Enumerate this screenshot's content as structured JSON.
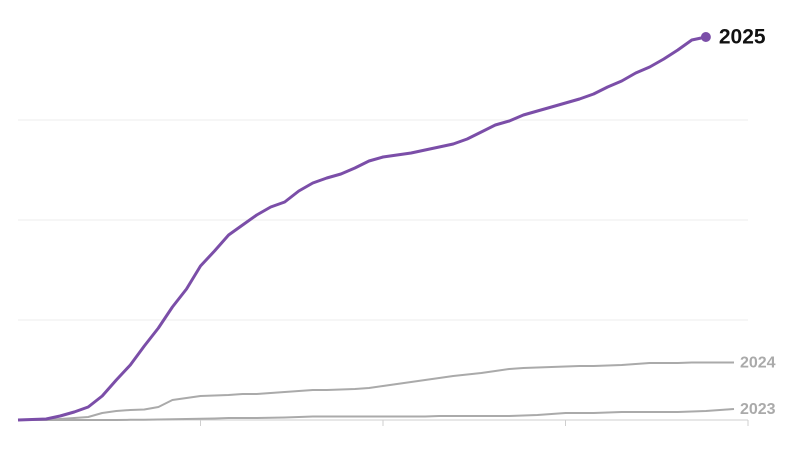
{
  "chart_data": {
    "type": "line",
    "x": [
      0,
      1,
      2,
      3,
      4,
      5,
      6,
      7,
      8,
      9,
      10,
      11,
      12,
      13,
      14,
      15,
      16,
      17,
      18,
      19,
      20,
      21,
      22,
      23,
      24,
      25,
      26,
      27,
      28,
      29,
      30,
      31,
      32,
      33,
      34,
      35,
      36,
      37,
      38,
      39,
      40,
      41,
      42,
      43,
      44,
      45,
      46,
      47,
      48,
      49,
      50,
      51
    ],
    "xlim": [
      0,
      52
    ],
    "xticks": [
      13,
      26,
      39,
      52
    ],
    "ylim": [
      0,
      400
    ],
    "yticks": [
      0,
      100,
      200,
      300
    ],
    "grid": true,
    "series": [
      {
        "name": "2025",
        "color": "#7b4ea8",
        "marker": true,
        "values": [
          0,
          0.5,
          1,
          4,
          8,
          13,
          24,
          40,
          55,
          74,
          92,
          113,
          131,
          154,
          169,
          185,
          195,
          205,
          213,
          218,
          229,
          237,
          242,
          246,
          252,
          259,
          263,
          265,
          267,
          270,
          273,
          276,
          281,
          288,
          295,
          299,
          305,
          309,
          313,
          317,
          321,
          326,
          333,
          339,
          347,
          353,
          361,
          370,
          380,
          383,
          null,
          null
        ]
      },
      {
        "name": "2024",
        "color": "#aaaaaa",
        "marker": false,
        "values": [
          0,
          0,
          0,
          1,
          2,
          3,
          7,
          9,
          10,
          10.5,
          13,
          20,
          22,
          24,
          24.5,
          25,
          26,
          26,
          27,
          28,
          29,
          30,
          30,
          30.5,
          31,
          32,
          34,
          36,
          38,
          40,
          42,
          44,
          45.5,
          47,
          49,
          51,
          52,
          52.5,
          53,
          53.5,
          54,
          54,
          54.5,
          55,
          56,
          57,
          57,
          57,
          57.5,
          57.5,
          57.5,
          57.5
        ]
      },
      {
        "name": "2023",
        "color": "#aaaaaa",
        "marker": false,
        "values": [
          0,
          0,
          0,
          0,
          0,
          0,
          0,
          0,
          0.2,
          0.3,
          0.5,
          0.7,
          1,
          1.2,
          1.5,
          2,
          2,
          2,
          2.2,
          2.5,
          3,
          3.5,
          3.5,
          3.5,
          3.5,
          3.5,
          3.5,
          3.5,
          3.5,
          3.5,
          4,
          4,
          4,
          4,
          4,
          4,
          4.5,
          5,
          6,
          7,
          7,
          7,
          7.5,
          8,
          8,
          8,
          8,
          8,
          8.5,
          9,
          10,
          11
        ]
      }
    ]
  }
}
